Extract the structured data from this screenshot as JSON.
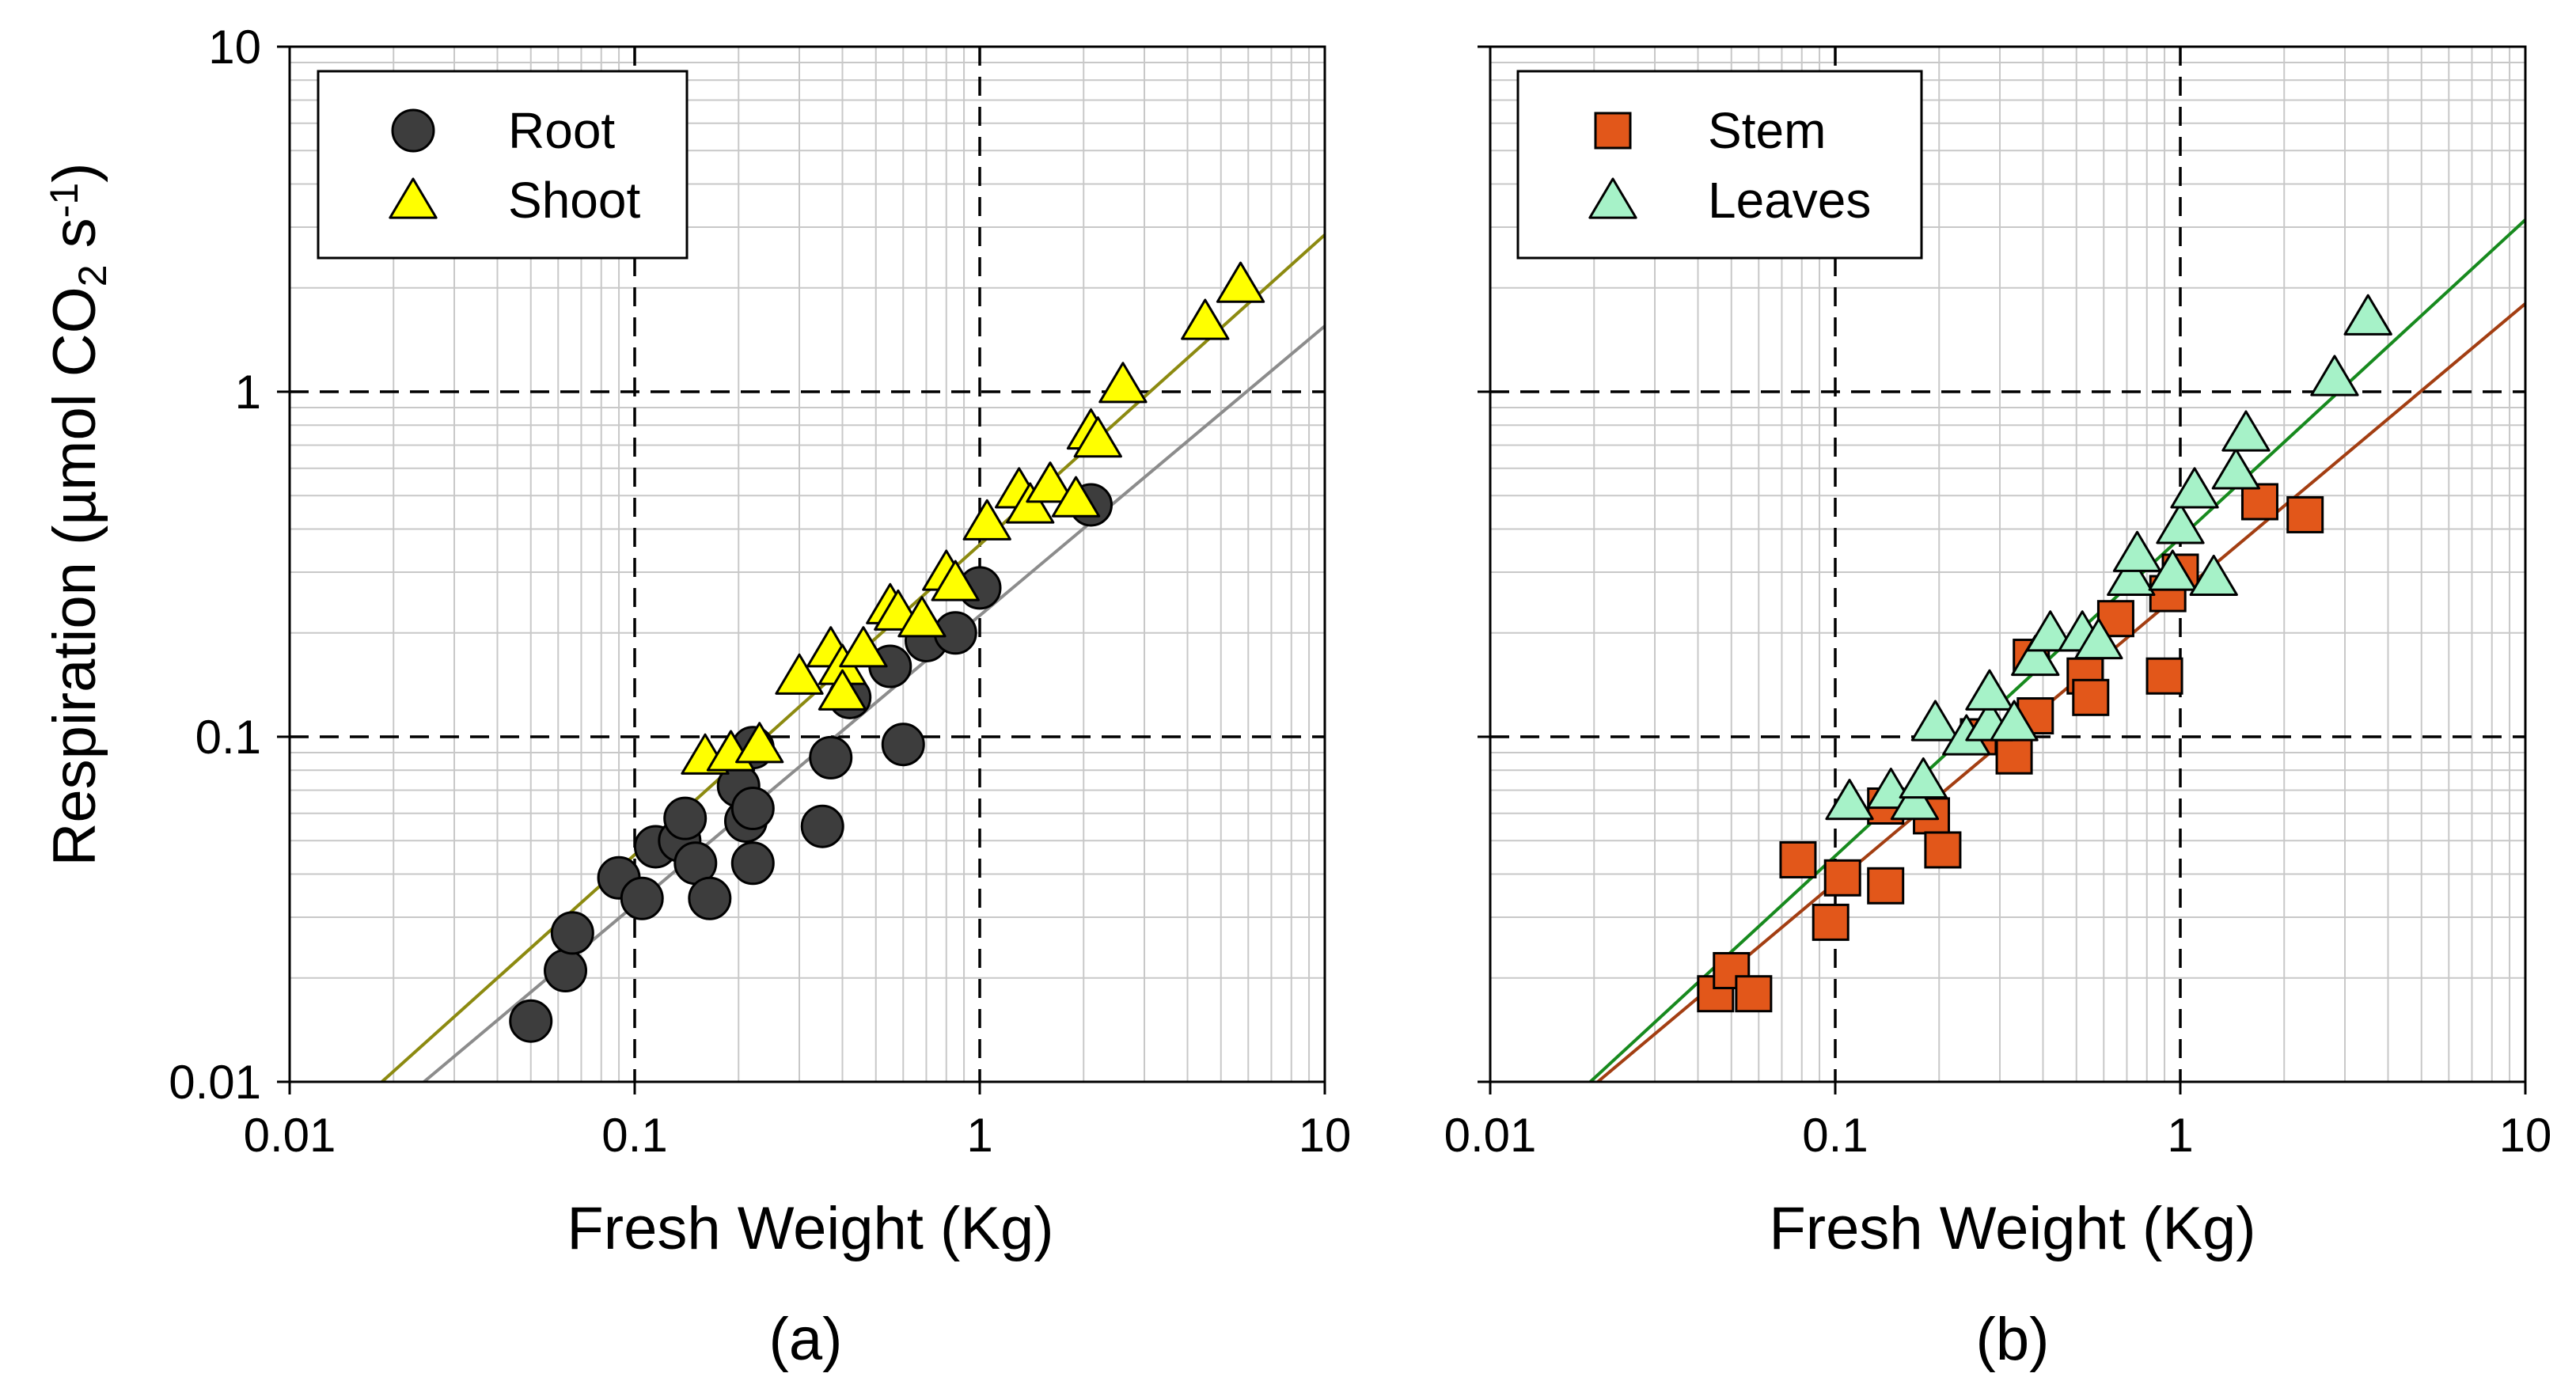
{
  "figure": {
    "ylabel": "Respiration (µmol CO",
    "ylabel_sub": "2",
    "ylabel_mid": " s",
    "ylabel_sup": "-1",
    "ylabel_end": ")"
  },
  "colors": {
    "root": "#3d3d3d",
    "shoot": "#ffff00",
    "stem": "#e2571a",
    "leaves": "#a6f2c8",
    "root_line": "#8c8c8c",
    "shoot_line": "#8c8a10",
    "stem_line": "#a33e12",
    "leaves_line": "#178a1e"
  },
  "chart_data": [
    {
      "type": "scatter",
      "panel_label": "(a)",
      "xlabel": "Fresh Weight (Kg)",
      "xscale": "log",
      "yscale": "log",
      "xlim": [
        0.01,
        10
      ],
      "ylim": [
        0.01,
        10
      ],
      "xticks": [
        "0.01",
        "0.1",
        "1",
        "10"
      ],
      "yticks": [
        "0.01",
        "0.1",
        "1",
        "10"
      ],
      "grid": true,
      "legend_position": "top-left",
      "series": [
        {
          "name": "Root",
          "marker": "circle",
          "color": "#3d3d3d",
          "points": [
            [
              0.05,
              0.015
            ],
            [
              0.063,
              0.021
            ],
            [
              0.066,
              0.027
            ],
            [
              0.09,
              0.039
            ],
            [
              0.105,
              0.034
            ],
            [
              0.115,
              0.048
            ],
            [
              0.135,
              0.05
            ],
            [
              0.14,
              0.058
            ],
            [
              0.15,
              0.043
            ],
            [
              0.165,
              0.034
            ],
            [
              0.2,
              0.072
            ],
            [
              0.21,
              0.057
            ],
            [
              0.22,
              0.093
            ],
            [
              0.22,
              0.062
            ],
            [
              0.22,
              0.043
            ],
            [
              0.35,
              0.055
            ],
            [
              0.37,
              0.087
            ],
            [
              0.42,
              0.13
            ],
            [
              0.55,
              0.16
            ],
            [
              0.6,
              0.095
            ],
            [
              0.7,
              0.19
            ],
            [
              0.85,
              0.2
            ],
            [
              1.0,
              0.27
            ],
            [
              2.1,
              0.47
            ]
          ],
          "fit": {
            "x": [
              0.0245,
              10
            ],
            "y": [
              0.01,
              1.55
            ]
          }
        },
        {
          "name": "Shoot",
          "marker": "triangle",
          "color": "#ffff00",
          "points": [
            [
              0.16,
              0.088
            ],
            [
              0.19,
              0.09
            ],
            [
              0.23,
              0.095
            ],
            [
              0.3,
              0.15
            ],
            [
              0.37,
              0.18
            ],
            [
              0.4,
              0.16
            ],
            [
              0.4,
              0.135
            ],
            [
              0.46,
              0.18
            ],
            [
              0.55,
              0.24
            ],
            [
              0.58,
              0.23
            ],
            [
              0.68,
              0.22
            ],
            [
              0.8,
              0.3
            ],
            [
              0.85,
              0.28
            ],
            [
              1.05,
              0.42
            ],
            [
              1.3,
              0.52
            ],
            [
              1.4,
              0.47
            ],
            [
              1.6,
              0.54
            ],
            [
              1.9,
              0.49
            ],
            [
              2.1,
              0.77
            ],
            [
              2.2,
              0.73
            ],
            [
              2.6,
              1.05
            ],
            [
              4.5,
              1.6
            ],
            [
              5.7,
              2.05
            ]
          ],
          "fit": {
            "x": [
              0.0185,
              10
            ],
            "y": [
              0.01,
              2.85
            ]
          }
        }
      ]
    },
    {
      "type": "scatter",
      "panel_label": "(b)",
      "xlabel": "Fresh Weight (Kg)",
      "xscale": "log",
      "yscale": "log",
      "xlim": [
        0.01,
        10
      ],
      "ylim": [
        0.01,
        10
      ],
      "xticks": [
        "0.01",
        "0.1",
        "1",
        "10"
      ],
      "yticks": [],
      "grid": true,
      "legend_position": "top-left",
      "series": [
        {
          "name": "Stem",
          "marker": "square",
          "color": "#e2571a",
          "points": [
            [
              0.045,
              0.018
            ],
            [
              0.05,
              0.021
            ],
            [
              0.058,
              0.018
            ],
            [
              0.078,
              0.044
            ],
            [
              0.097,
              0.029
            ],
            [
              0.105,
              0.039
            ],
            [
              0.14,
              0.037
            ],
            [
              0.14,
              0.063
            ],
            [
              0.19,
              0.059
            ],
            [
              0.205,
              0.047
            ],
            [
              0.26,
              0.1
            ],
            [
              0.33,
              0.088
            ],
            [
              0.37,
              0.17
            ],
            [
              0.38,
              0.115
            ],
            [
              0.53,
              0.15
            ],
            [
              0.55,
              0.13
            ],
            [
              0.65,
              0.22
            ],
            [
              0.9,
              0.15
            ],
            [
              0.92,
              0.26
            ],
            [
              1.0,
              0.3
            ],
            [
              1.7,
              0.48
            ],
            [
              2.3,
              0.44
            ]
          ],
          "fit": {
            "x": [
              0.0205,
              10
            ],
            "y": [
              0.01,
              1.8
            ]
          }
        },
        {
          "name": "Leaves",
          "marker": "triangle",
          "color": "#a6f2c8",
          "points": [
            [
              0.11,
              0.065
            ],
            [
              0.145,
              0.07
            ],
            [
              0.17,
              0.065
            ],
            [
              0.18,
              0.075
            ],
            [
              0.195,
              0.11
            ],
            [
              0.24,
              0.1
            ],
            [
              0.28,
              0.11
            ],
            [
              0.28,
              0.135
            ],
            [
              0.33,
              0.11
            ],
            [
              0.38,
              0.17
            ],
            [
              0.42,
              0.2
            ],
            [
              0.52,
              0.2
            ],
            [
              0.58,
              0.19
            ],
            [
              0.72,
              0.29
            ],
            [
              0.75,
              0.34
            ],
            [
              0.95,
              0.3
            ],
            [
              1.0,
              0.41
            ],
            [
              1.1,
              0.52
            ],
            [
              1.25,
              0.29
            ],
            [
              1.45,
              0.59
            ],
            [
              1.55,
              0.76
            ],
            [
              2.8,
              1.1
            ],
            [
              3.5,
              1.65
            ]
          ],
          "fit": {
            "x": [
              0.0195,
              10
            ],
            "y": [
              0.01,
              3.15
            ]
          }
        }
      ]
    }
  ]
}
